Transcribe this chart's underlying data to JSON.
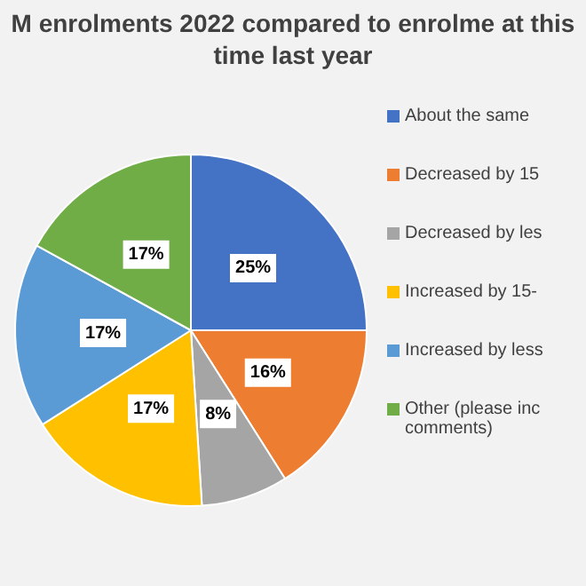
{
  "chart_data": {
    "type": "pie",
    "title": "M enrolments 2022 compared to enrolme at this time last year",
    "categories": [
      "About the same",
      "Decreased by 15",
      "Decreased by les",
      "Increased by 15-",
      "Increased by less",
      "Other (please inc comments)"
    ],
    "values": [
      25,
      16,
      8,
      17,
      17,
      17
    ],
    "value_labels": [
      "25%",
      "16%",
      "8%",
      "17%",
      "17%",
      "17%"
    ],
    "colors": [
      "#4472c4",
      "#ed7d31",
      "#a5a5a5",
      "#ffc000",
      "#5b9bd5",
      "#70ad47"
    ],
    "legend": "right"
  }
}
